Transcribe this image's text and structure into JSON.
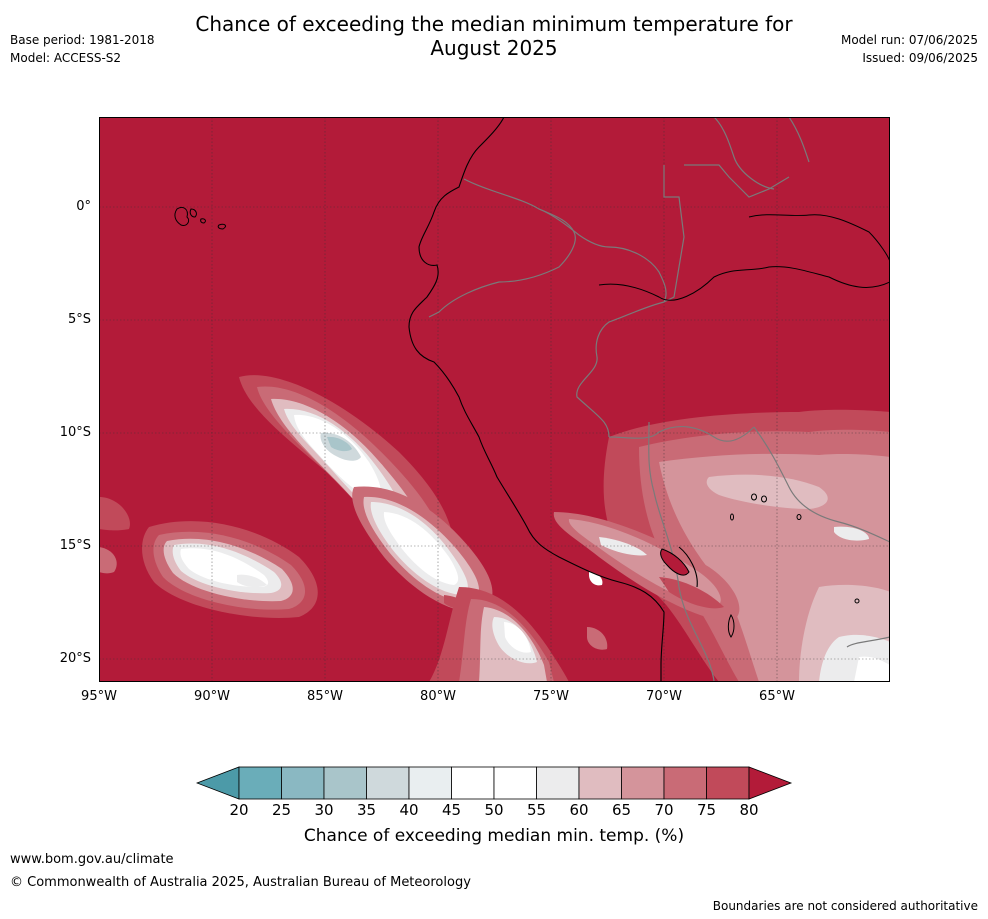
{
  "header": {
    "title_line1": "Chance of exceeding the median minimum temperature for",
    "title_line2": "August 2025",
    "base_period": "Base period: 1981-2018",
    "model": "Model: ACCESS-S2",
    "model_run": "Model run: 07/06/2025",
    "issued": "Issued: 09/06/2025"
  },
  "map": {
    "latitude_labels": [
      "0°",
      "5°S",
      "10°S",
      "15°S",
      "20°S"
    ],
    "longitude_labels": [
      "95°W",
      "90°W",
      "85°W",
      "80°W",
      "75°W",
      "70°W",
      "65°W"
    ],
    "extent": {
      "lon_min": -95,
      "lon_max": -60.2,
      "lat_min": -21,
      "lat_max": 4
    },
    "colors": {
      "above_80": "#b31b39",
      "75_80": "#c14a5a",
      "70_75": "#c96b76",
      "65_70": "#d4949b",
      "60_65": "#e0bcc0",
      "55_60": "#ececed",
      "50_55": "#ffffff",
      "45_50": "#e9eef0",
      "40_45": "#cfd9dc",
      "35_40": "#a9c5ca",
      "30_35": "#8ab8c2",
      "25_30": "#6aadb9",
      "below_20": "#4c9aa8"
    }
  },
  "colorbar": {
    "tick_labels": [
      "20",
      "25",
      "30",
      "35",
      "40",
      "45",
      "50",
      "55",
      "60",
      "65",
      "70",
      "75",
      "80"
    ],
    "colors": [
      "#4c9aa8",
      "#6aadb9",
      "#8ab8c2",
      "#a9c5ca",
      "#cfd9dc",
      "#e9eef0",
      "#ffffff",
      "#ffffff",
      "#ececed",
      "#e0bcc0",
      "#d4949b",
      "#c96b76",
      "#c14a5a",
      "#b31b39"
    ],
    "label": "Chance of exceeding median min. temp. (%)"
  },
  "footer": {
    "website": "www.bom.gov.au/climate",
    "copyright": "© Commonwealth of Australia 2025, Australian Bureau of Meteorology",
    "disclaimer": "Boundaries are not considered authoritative"
  }
}
